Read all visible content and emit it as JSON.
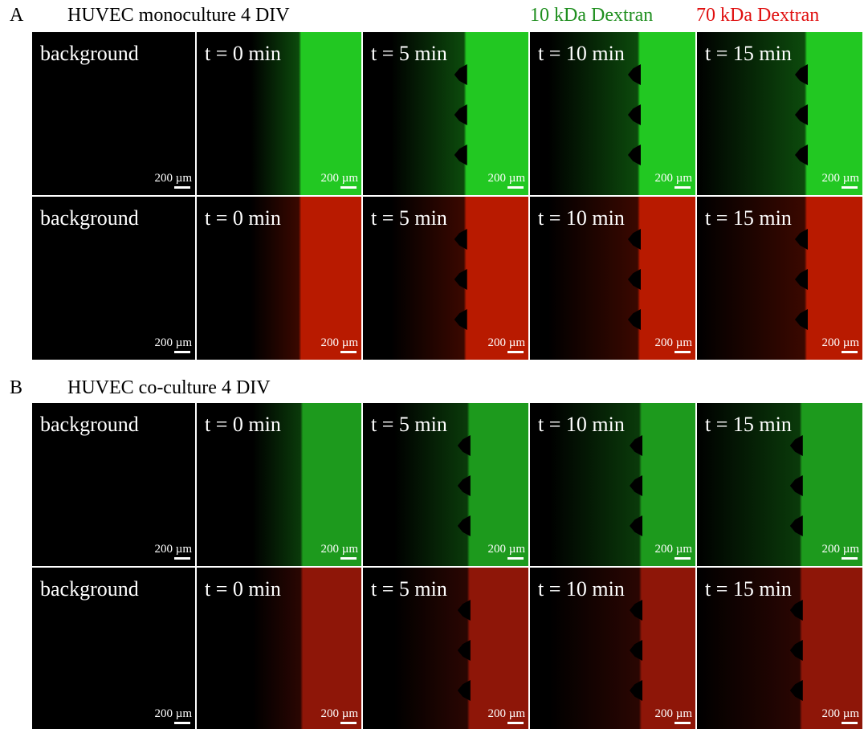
{
  "legend": {
    "green_label": "10 kDa Dextran",
    "red_label": "70 kDa Dextran"
  },
  "panels": [
    {
      "letter": "A",
      "title": "HUVEC monoculture 4 DIV",
      "rows": [
        {
          "tiles": [
            {
              "label": "background",
              "scale": "200 µm"
            },
            {
              "label": "t = 0 min",
              "scale": "200 µm"
            },
            {
              "label": "t = 5 min",
              "scale": "200 µm"
            },
            {
              "label": "t = 10 min",
              "scale": "200 µm"
            },
            {
              "label": "t = 15 min",
              "scale": "200 µm"
            }
          ]
        },
        {
          "tiles": [
            {
              "label": "background",
              "scale": "200 µm"
            },
            {
              "label": "t = 0 min",
              "scale": "200 µm"
            },
            {
              "label": "t = 5 min",
              "scale": "200 µm"
            },
            {
              "label": "t = 10 min",
              "scale": "200 µm"
            },
            {
              "label": "t = 15 min",
              "scale": "200 µm"
            }
          ]
        }
      ]
    },
    {
      "letter": "B",
      "title": "HUVEC co-culture 4 DIV",
      "rows": [
        {
          "tiles": [
            {
              "label": "background",
              "scale": "200 µm"
            },
            {
              "label": "t = 0 min",
              "scale": "200 µm"
            },
            {
              "label": "t = 5 min",
              "scale": "200 µm"
            },
            {
              "label": "t = 10 min",
              "scale": "200 µm"
            },
            {
              "label": "t = 15 min",
              "scale": "200 µm"
            }
          ]
        },
        {
          "tiles": [
            {
              "label": "background",
              "scale": "200 µm"
            },
            {
              "label": "t = 0 min",
              "scale": "200 µm"
            },
            {
              "label": "t = 5 min",
              "scale": "200 µm"
            },
            {
              "label": "t = 10 min",
              "scale": "200 µm"
            },
            {
              "label": "t = 15 min",
              "scale": "200 µm"
            }
          ]
        }
      ]
    }
  ]
}
